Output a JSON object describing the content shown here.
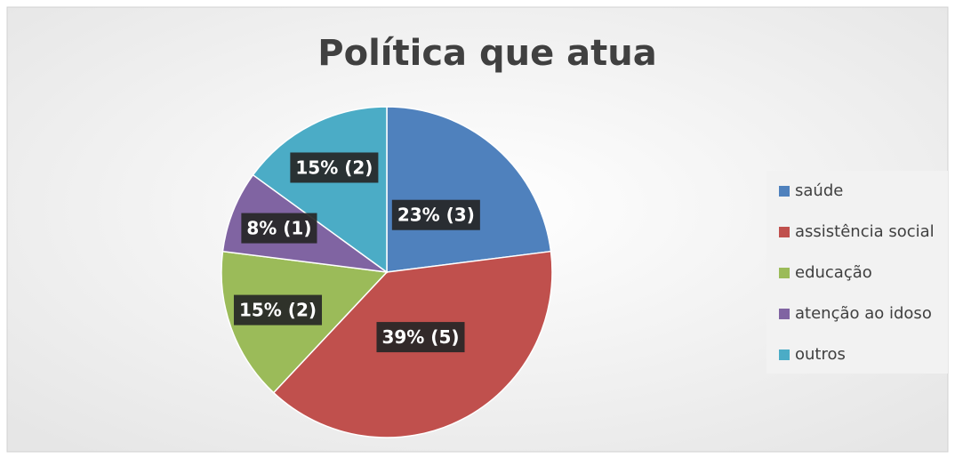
{
  "chart_data": {
    "type": "pie",
    "title": "Política que atua",
    "categories": [
      "saúde",
      "assistência social",
      "educação",
      "atenção ao idoso",
      "outros"
    ],
    "values": [
      23,
      39,
      15,
      8,
      15
    ],
    "value_labels": [
      "23% (3)",
      "39% (5)",
      "15% (2)",
      "8% (1)",
      "15% (2)"
    ],
    "colors": [
      "#4f81bd",
      "#c0504d",
      "#9bbb59",
      "#8064a2",
      "#4bacc6"
    ],
    "legend": "right"
  }
}
